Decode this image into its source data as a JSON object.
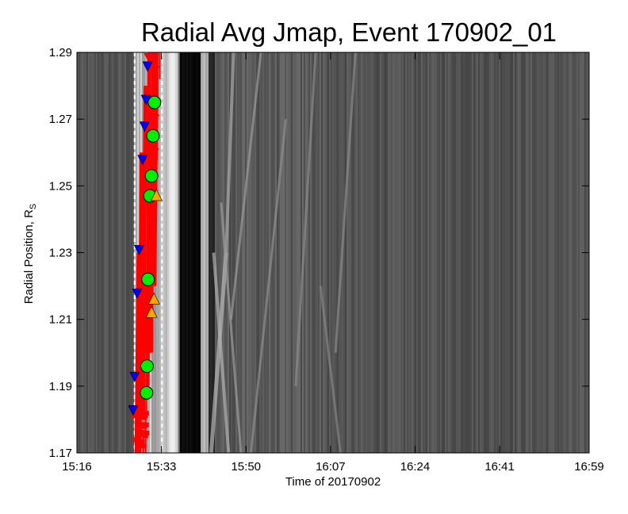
{
  "chart_data": {
    "type": "heatmap",
    "title": "Radial Avg Jmap, Event 170902_01",
    "xlabel": "Time of 20170902",
    "ylabel": "Radial Position, R",
    "ylabel_subscript": "S",
    "x_tick_labels": [
      "15:16",
      "15:33",
      "15:50",
      "16:07",
      "16:24",
      "16:41",
      "16:59"
    ],
    "x_tick_minutes": [
      0,
      17,
      34,
      51,
      68,
      85,
      103
    ],
    "x_range_minutes": [
      0,
      103
    ],
    "y_tick_labels": [
      "1.17",
      "1.19",
      "1.21",
      "1.23",
      "1.25",
      "1.27",
      "1.29"
    ],
    "y_range": [
      1.17,
      1.29
    ],
    "colormap": "grayscale",
    "dashed_lines_minutes": [
      11.6,
      17.1
    ],
    "bright_band_minutes": [
      17.8,
      20.3
    ],
    "dark_band_minutes": [
      20.5,
      24.6
    ],
    "series": [
      {
        "marker": "down-triangle",
        "color": "#0000ff",
        "points": [
          {
            "t": 11.3,
            "r": 1.183
          },
          {
            "t": 11.6,
            "r": 1.193
          },
          {
            "t": 12.1,
            "r": 1.218
          },
          {
            "t": 12.5,
            "r": 1.231
          },
          {
            "t": 13.2,
            "r": 1.258
          },
          {
            "t": 13.6,
            "r": 1.268
          },
          {
            "t": 13.9,
            "r": 1.276
          },
          {
            "t": 14.2,
            "r": 1.286
          }
        ]
      },
      {
        "marker": "circle",
        "color": "#00ee00",
        "points": [
          {
            "t": 14.0,
            "r": 1.188
          },
          {
            "t": 14.1,
            "r": 1.196
          },
          {
            "t": 14.3,
            "r": 1.222
          },
          {
            "t": 14.7,
            "r": 1.247
          },
          {
            "t": 15.0,
            "r": 1.253
          },
          {
            "t": 15.3,
            "r": 1.265
          },
          {
            "t": 15.6,
            "r": 1.275
          }
        ]
      },
      {
        "marker": "up-triangle",
        "color": "#ffa500",
        "points": [
          {
            "t": 15.0,
            "r": 1.212
          },
          {
            "t": 15.5,
            "r": 1.216
          },
          {
            "t": 16.0,
            "r": 1.247
          }
        ]
      }
    ]
  }
}
